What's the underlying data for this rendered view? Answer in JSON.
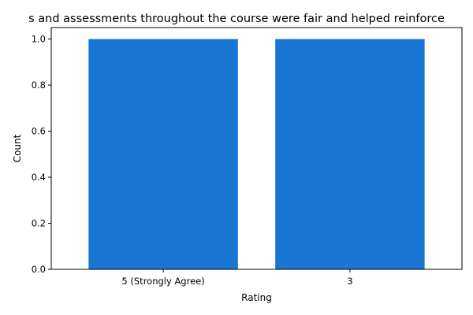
{
  "chart_data": {
    "type": "bar",
    "title": "s and assessments throughout the course were fair and helped reinforce",
    "xlabel": "Rating",
    "ylabel": "Count",
    "categories": [
      "5 (Strongly Agree)",
      "3"
    ],
    "values": [
      1,
      1
    ],
    "ylim": [
      0,
      1.05
    ],
    "yticks": [
      "0.0",
      "0.2",
      "0.4",
      "0.6",
      "0.8",
      "1.0"
    ],
    "grid": false,
    "bar_color": "#1976d2"
  }
}
